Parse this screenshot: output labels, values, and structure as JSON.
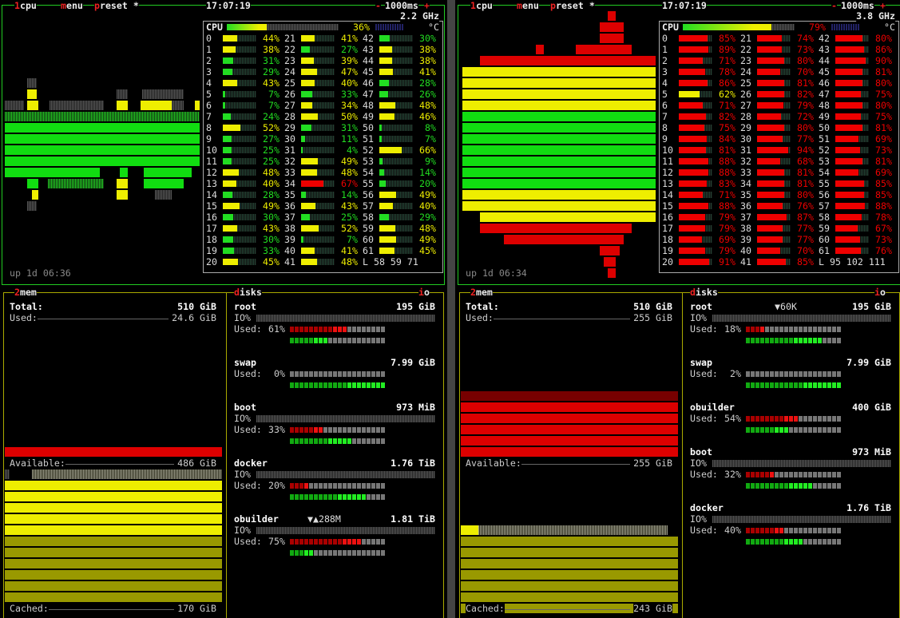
{
  "panes": [
    {
      "cpu": {
        "tabs": [
          {
            "key": "1",
            "text": "cpu"
          },
          {
            "key": "m",
            "text": "enu"
          },
          {
            "key": "p",
            "text": "reset *"
          }
        ],
        "clock": "17:07:19",
        "minus": "-",
        "interval": "1000ms",
        "plus": "+",
        "freq": "2.2 GHz",
        "label": "CPU",
        "total": "36%",
        "temp_unit": "°C",
        "cores": [
          [
            "0",
            "44%"
          ],
          [
            "1",
            "38%"
          ],
          [
            "2",
            "31%"
          ],
          [
            "3",
            "29%"
          ],
          [
            "4",
            "43%"
          ],
          [
            "5",
            "7%"
          ],
          [
            "6",
            "7%"
          ],
          [
            "7",
            "24%"
          ],
          [
            "8",
            "52%"
          ],
          [
            "9",
            "27%"
          ],
          [
            "10",
            "25%"
          ],
          [
            "11",
            "25%"
          ],
          [
            "12",
            "48%"
          ],
          [
            "13",
            "40%"
          ],
          [
            "14",
            "28%"
          ],
          [
            "15",
            "49%"
          ],
          [
            "16",
            "30%"
          ],
          [
            "17",
            "43%"
          ],
          [
            "18",
            "30%"
          ],
          [
            "19",
            "33%"
          ],
          [
            "20",
            "45%"
          ],
          [
            "21",
            "41%"
          ],
          [
            "22",
            "27%"
          ],
          [
            "23",
            "39%"
          ],
          [
            "24",
            "47%"
          ],
          [
            "25",
            "40%"
          ],
          [
            "26",
            "33%"
          ],
          [
            "27",
            "34%"
          ],
          [
            "28",
            "50%"
          ],
          [
            "29",
            "31%"
          ],
          [
            "30",
            "11%"
          ],
          [
            "31",
            "4%"
          ],
          [
            "32",
            "49%"
          ],
          [
            "33",
            "48%"
          ],
          [
            "34",
            "67%"
          ],
          [
            "35",
            "14%"
          ],
          [
            "36",
            "43%"
          ],
          [
            "37",
            "25%"
          ],
          [
            "38",
            "52%"
          ],
          [
            "39",
            "7%"
          ],
          [
            "40",
            "41%"
          ],
          [
            "41",
            "48%"
          ],
          [
            "42",
            "30%"
          ],
          [
            "43",
            "38%"
          ],
          [
            "44",
            "38%"
          ],
          [
            "45",
            "41%"
          ],
          [
            "46",
            "28%"
          ],
          [
            "47",
            "26%"
          ],
          [
            "48",
            "48%"
          ],
          [
            "49",
            "46%"
          ],
          [
            "50",
            "8%"
          ],
          [
            "51",
            "7%"
          ],
          [
            "52",
            "66%"
          ],
          [
            "53",
            "9%"
          ],
          [
            "54",
            "14%"
          ],
          [
            "55",
            "20%"
          ],
          [
            "56",
            "49%"
          ],
          [
            "57",
            "40%"
          ],
          [
            "58",
            "29%"
          ],
          [
            "59",
            "48%"
          ],
          [
            "60",
            "49%"
          ],
          [
            "61",
            "45%"
          ]
        ],
        "load": "L 58 59 71",
        "uptime": "up 1d 06:36"
      },
      "mem": {
        "key": "2",
        "title": "mem",
        "rows": [
          {
            "label": "Total:",
            "value": "510 GiB"
          },
          {
            "label": "Used:",
            "value": "24.6 GiB"
          },
          {
            "label": "Available:",
            "value": "486 GiB"
          },
          {
            "label": "Cached:",
            "value": "170 GiB"
          }
        ]
      },
      "disks": {
        "key": "d",
        "title": "isks",
        "io_key": "i",
        "io_title": "o",
        "items": [
          {
            "name": "root",
            "size": "195 GiB",
            "io_label": "IO%",
            "used_label": "Used:",
            "used": "61%"
          },
          {
            "name": "swap",
            "size": "7.99 GiB",
            "used_label": "Used:",
            "used": "0%"
          },
          {
            "name": "boot",
            "size": "973 MiB",
            "io_label": "IO%",
            "used_label": "Used:",
            "used": "33%"
          },
          {
            "name": "docker",
            "size": "1.76 TiB",
            "io_label": "IO%",
            "used_label": "Used:",
            "used": "20%"
          },
          {
            "name": "obuilder",
            "rate": "▼▲288M",
            "size": "1.81 TiB",
            "io_label": "IO%",
            "used_label": "Used:",
            "used": "75%"
          }
        ]
      }
    },
    {
      "cpu": {
        "tabs": [
          {
            "key": "1",
            "text": "cpu"
          },
          {
            "key": "m",
            "text": "enu"
          },
          {
            "key": "p",
            "text": "reset *"
          }
        ],
        "clock": "17:07:19",
        "minus": "-",
        "interval": "1000ms",
        "plus": "+",
        "freq": "3.8 GHz",
        "label": "CPU",
        "total": "79%",
        "temp_unit": "°C",
        "cores": [
          [
            "0",
            "85%"
          ],
          [
            "1",
            "89%"
          ],
          [
            "2",
            "71%"
          ],
          [
            "3",
            "78%"
          ],
          [
            "4",
            "86%"
          ],
          [
            "5",
            "62%"
          ],
          [
            "6",
            "71%"
          ],
          [
            "7",
            "82%"
          ],
          [
            "8",
            "75%"
          ],
          [
            "9",
            "84%"
          ],
          [
            "10",
            "81%"
          ],
          [
            "11",
            "88%"
          ],
          [
            "12",
            "88%"
          ],
          [
            "13",
            "83%"
          ],
          [
            "14",
            "71%"
          ],
          [
            "15",
            "88%"
          ],
          [
            "16",
            "79%"
          ],
          [
            "17",
            "79%"
          ],
          [
            "18",
            "69%"
          ],
          [
            "19",
            "79%"
          ],
          [
            "20",
            "91%"
          ],
          [
            "21",
            "74%"
          ],
          [
            "22",
            "73%"
          ],
          [
            "23",
            "80%"
          ],
          [
            "24",
            "70%"
          ],
          [
            "25",
            "81%"
          ],
          [
            "26",
            "82%"
          ],
          [
            "27",
            "79%"
          ],
          [
            "28",
            "72%"
          ],
          [
            "29",
            "80%"
          ],
          [
            "30",
            "77%"
          ],
          [
            "31",
            "94%"
          ],
          [
            "32",
            "68%"
          ],
          [
            "33",
            "81%"
          ],
          [
            "34",
            "81%"
          ],
          [
            "35",
            "80%"
          ],
          [
            "36",
            "76%"
          ],
          [
            "37",
            "87%"
          ],
          [
            "38",
            "77%"
          ],
          [
            "39",
            "77%"
          ],
          [
            "40",
            "70%"
          ],
          [
            "41",
            "85%"
          ],
          [
            "42",
            "80%"
          ],
          [
            "43",
            "86%"
          ],
          [
            "44",
            "90%"
          ],
          [
            "45",
            "81%"
          ],
          [
            "46",
            "80%"
          ],
          [
            "47",
            "75%"
          ],
          [
            "48",
            "80%"
          ],
          [
            "49",
            "75%"
          ],
          [
            "50",
            "81%"
          ],
          [
            "51",
            "69%"
          ],
          [
            "52",
            "73%"
          ],
          [
            "53",
            "81%"
          ],
          [
            "54",
            "69%"
          ],
          [
            "55",
            "85%"
          ],
          [
            "56",
            "85%"
          ],
          [
            "57",
            "88%"
          ],
          [
            "58",
            "78%"
          ],
          [
            "59",
            "67%"
          ],
          [
            "60",
            "73%"
          ],
          [
            "61",
            "76%"
          ]
        ],
        "load": "L 95 102 111",
        "uptime": "up 1d 06:34"
      },
      "mem": {
        "key": "2",
        "title": "mem",
        "rows": [
          {
            "label": "Total:",
            "value": "510 GiB"
          },
          {
            "label": "Used:",
            "value": "255 GiB"
          },
          {
            "label": "Available:",
            "value": "255 GiB"
          },
          {
            "label": "Cached:",
            "value": "243 GiB"
          }
        ]
      },
      "disks": {
        "key": "d",
        "title": "isks",
        "io_key": "i",
        "io_title": "o",
        "items": [
          {
            "name": "root",
            "rate": "▼60K",
            "size": "195 GiB",
            "io_label": "IO%",
            "used_label": "Used:",
            "used": "18%"
          },
          {
            "name": "swap",
            "size": "7.99 GiB",
            "used_label": "Used:",
            "used": "2%"
          },
          {
            "name": "obuilder",
            "size": "400 GiB",
            "used_label": "Used:",
            "used": "54%"
          },
          {
            "name": "boot",
            "size": "973 MiB",
            "io_label": "IO%",
            "used_label": "Used:",
            "used": "32%"
          },
          {
            "name": "docker",
            "size": "1.76 TiB",
            "io_label": "IO%",
            "used_label": "Used:",
            "used": "40%"
          }
        ]
      }
    }
  ]
}
